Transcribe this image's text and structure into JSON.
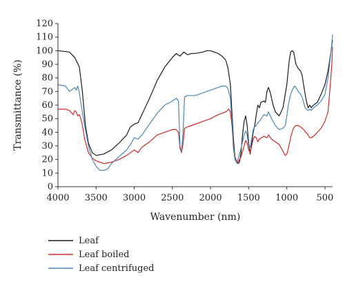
{
  "chart_data": {
    "type": "line",
    "xlabel": "Wavenumber (nm)",
    "ylabel": "Transmittance (%)",
    "xlim": [
      4000,
      400
    ],
    "ylim": [
      0,
      120
    ],
    "x_reversed": true,
    "x_ticks": [
      4000,
      3500,
      3000,
      2500,
      2000,
      1500,
      1000,
      500
    ],
    "y_ticks": [
      0,
      10,
      20,
      30,
      40,
      50,
      60,
      70,
      80,
      90,
      100,
      110,
      120
    ],
    "grid": false,
    "legend_position": "bottom-left",
    "series": [
      {
        "name": "Leaf",
        "color": "#1a1a1a",
        "points": [
          [
            4000,
            100
          ],
          [
            3850,
            99
          ],
          [
            3780,
            95
          ],
          [
            3720,
            88
          ],
          [
            3680,
            70
          ],
          [
            3640,
            45
          ],
          [
            3600,
            32
          ],
          [
            3550,
            25
          ],
          [
            3500,
            23
          ],
          [
            3400,
            24
          ],
          [
            3300,
            27
          ],
          [
            3200,
            32
          ],
          [
            3100,
            38
          ],
          [
            3050,
            44
          ],
          [
            3000,
            46
          ],
          [
            2950,
            47
          ],
          [
            2900,
            53
          ],
          [
            2800,
            65
          ],
          [
            2700,
            78
          ],
          [
            2600,
            88
          ],
          [
            2500,
            95
          ],
          [
            2450,
            98
          ],
          [
            2400,
            96
          ],
          [
            2350,
            99
          ],
          [
            2300,
            97
          ],
          [
            2250,
            98
          ],
          [
            2200,
            98
          ],
          [
            2100,
            99
          ],
          [
            2050,
            100
          ],
          [
            2000,
            100
          ],
          [
            1950,
            99
          ],
          [
            1900,
            98
          ],
          [
            1850,
            96
          ],
          [
            1800,
            93
          ],
          [
            1770,
            87
          ],
          [
            1740,
            75
          ],
          [
            1720,
            55
          ],
          [
            1700,
            35
          ],
          [
            1680,
            22
          ],
          [
            1660,
            18
          ],
          [
            1640,
            17
          ],
          [
            1620,
            18
          ],
          [
            1600,
            25
          ],
          [
            1580,
            38
          ],
          [
            1560,
            48
          ],
          [
            1540,
            52
          ],
          [
            1520,
            45
          ],
          [
            1500,
            32
          ],
          [
            1480,
            24
          ],
          [
            1460,
            32
          ],
          [
            1440,
            40
          ],
          [
            1420,
            45
          ],
          [
            1400,
            53
          ],
          [
            1380,
            60
          ],
          [
            1360,
            58
          ],
          [
            1340,
            62
          ],
          [
            1300,
            63
          ],
          [
            1280,
            62
          ],
          [
            1260,
            70
          ],
          [
            1240,
            73
          ],
          [
            1220,
            70
          ],
          [
            1200,
            65
          ],
          [
            1180,
            60
          ],
          [
            1150,
            55
          ],
          [
            1100,
            52
          ],
          [
            1050,
            58
          ],
          [
            1000,
            75
          ],
          [
            970,
            92
          ],
          [
            950,
            99
          ],
          [
            930,
            100
          ],
          [
            910,
            99
          ],
          [
            880,
            90
          ],
          [
            850,
            87
          ],
          [
            820,
            85
          ],
          [
            800,
            82
          ],
          [
            780,
            75
          ],
          [
            760,
            68
          ],
          [
            740,
            62
          ],
          [
            720,
            58
          ],
          [
            700,
            60
          ],
          [
            680,
            58
          ],
          [
            650,
            60
          ],
          [
            600,
            62
          ],
          [
            550,
            68
          ],
          [
            500,
            75
          ],
          [
            460,
            85
          ],
          [
            420,
            100
          ],
          [
            400,
            108
          ]
        ]
      },
      {
        "name": "Leaf boiled",
        "color": "#d62728",
        "points": [
          [
            4000,
            57
          ],
          [
            3900,
            57
          ],
          [
            3850,
            56
          ],
          [
            3800,
            53
          ],
          [
            3780,
            56
          ],
          [
            3760,
            55
          ],
          [
            3740,
            52
          ],
          [
            3720,
            53
          ],
          [
            3700,
            50
          ],
          [
            3680,
            45
          ],
          [
            3650,
            35
          ],
          [
            3600,
            25
          ],
          [
            3550,
            21
          ],
          [
            3500,
            19
          ],
          [
            3450,
            18
          ],
          [
            3400,
            17
          ],
          [
            3300,
            18
          ],
          [
            3200,
            20
          ],
          [
            3100,
            23
          ],
          [
            3050,
            25
          ],
          [
            3000,
            27
          ],
          [
            2950,
            25
          ],
          [
            2900,
            29
          ],
          [
            2800,
            33
          ],
          [
            2700,
            38
          ],
          [
            2600,
            40
          ],
          [
            2500,
            42
          ],
          [
            2450,
            42
          ],
          [
            2420,
            40
          ],
          [
            2400,
            28
          ],
          [
            2380,
            25
          ],
          [
            2360,
            32
          ],
          [
            2340,
            43
          ],
          [
            2300,
            44
          ],
          [
            2200,
            46
          ],
          [
            2100,
            48
          ],
          [
            2000,
            50
          ],
          [
            1900,
            53
          ],
          [
            1850,
            54
          ],
          [
            1800,
            55
          ],
          [
            1760,
            57
          ],
          [
            1740,
            55
          ],
          [
            1720,
            45
          ],
          [
            1700,
            30
          ],
          [
            1680,
            22
          ],
          [
            1660,
            19
          ],
          [
            1640,
            18
          ],
          [
            1620,
            20
          ],
          [
            1600,
            22
          ],
          [
            1580,
            26
          ],
          [
            1560,
            30
          ],
          [
            1540,
            34
          ],
          [
            1520,
            32
          ],
          [
            1500,
            27
          ],
          [
            1480,
            25
          ],
          [
            1460,
            30
          ],
          [
            1440,
            35
          ],
          [
            1420,
            37
          ],
          [
            1400,
            36
          ],
          [
            1380,
            33
          ],
          [
            1360,
            35
          ],
          [
            1300,
            37
          ],
          [
            1260,
            36
          ],
          [
            1240,
            38
          ],
          [
            1200,
            35
          ],
          [
            1150,
            33
          ],
          [
            1100,
            31
          ],
          [
            1050,
            26
          ],
          [
            1020,
            23
          ],
          [
            1000,
            24
          ],
          [
            980,
            28
          ],
          [
            950,
            36
          ],
          [
            920,
            42
          ],
          [
            900,
            44
          ],
          [
            880,
            45
          ],
          [
            850,
            45
          ],
          [
            820,
            44
          ],
          [
            800,
            43
          ],
          [
            780,
            42
          ],
          [
            750,
            40
          ],
          [
            720,
            38
          ],
          [
            700,
            36
          ],
          [
            680,
            36
          ],
          [
            650,
            37
          ],
          [
            600,
            40
          ],
          [
            550,
            43
          ],
          [
            500,
            48
          ],
          [
            460,
            55
          ],
          [
            430,
            75
          ],
          [
            410,
            90
          ],
          [
            400,
            103
          ]
        ]
      },
      {
        "name": "Leaf centrifuged",
        "color": "#4a86b8",
        "points": [
          [
            4000,
            75
          ],
          [
            3900,
            74
          ],
          [
            3850,
            70
          ],
          [
            3800,
            72
          ],
          [
            3780,
            73
          ],
          [
            3760,
            71
          ],
          [
            3740,
            74
          ],
          [
            3720,
            69
          ],
          [
            3700,
            62
          ],
          [
            3680,
            55
          ],
          [
            3650,
            45
          ],
          [
            3600,
            30
          ],
          [
            3550,
            20
          ],
          [
            3500,
            15
          ],
          [
            3450,
            12
          ],
          [
            3400,
            12
          ],
          [
            3350,
            13
          ],
          [
            3300,
            17
          ],
          [
            3200,
            22
          ],
          [
            3100,
            27
          ],
          [
            3050,
            31
          ],
          [
            3000,
            36
          ],
          [
            2950,
            35
          ],
          [
            2900,
            38
          ],
          [
            2800,
            46
          ],
          [
            2700,
            54
          ],
          [
            2600,
            60
          ],
          [
            2500,
            63
          ],
          [
            2450,
            65
          ],
          [
            2420,
            63
          ],
          [
            2400,
            30
          ],
          [
            2380,
            26
          ],
          [
            2360,
            40
          ],
          [
            2340,
            66
          ],
          [
            2300,
            67
          ],
          [
            2200,
            67
          ],
          [
            2100,
            69
          ],
          [
            2000,
            71
          ],
          [
            1900,
            73
          ],
          [
            1850,
            74
          ],
          [
            1800,
            74
          ],
          [
            1770,
            72
          ],
          [
            1740,
            65
          ],
          [
            1720,
            48
          ],
          [
            1700,
            28
          ],
          [
            1680,
            20
          ],
          [
            1660,
            18
          ],
          [
            1640,
            20
          ],
          [
            1620,
            24
          ],
          [
            1600,
            28
          ],
          [
            1580,
            33
          ],
          [
            1560,
            38
          ],
          [
            1540,
            41
          ],
          [
            1520,
            38
          ],
          [
            1500,
            30
          ],
          [
            1480,
            29
          ],
          [
            1460,
            35
          ],
          [
            1440,
            42
          ],
          [
            1420,
            44
          ],
          [
            1400,
            45
          ],
          [
            1380,
            47
          ],
          [
            1360,
            48
          ],
          [
            1300,
            53
          ],
          [
            1260,
            52
          ],
          [
            1240,
            55
          ],
          [
            1200,
            50
          ],
          [
            1150,
            45
          ],
          [
            1100,
            42
          ],
          [
            1050,
            43
          ],
          [
            1020,
            45
          ],
          [
            1000,
            52
          ],
          [
            980,
            60
          ],
          [
            950,
            68
          ],
          [
            920,
            72
          ],
          [
            900,
            74
          ],
          [
            880,
            73
          ],
          [
            850,
            70
          ],
          [
            820,
            68
          ],
          [
            800,
            66
          ],
          [
            780,
            62
          ],
          [
            760,
            58
          ],
          [
            740,
            57
          ],
          [
            720,
            56
          ],
          [
            700,
            57
          ],
          [
            680,
            56
          ],
          [
            650,
            58
          ],
          [
            600,
            60
          ],
          [
            550,
            63
          ],
          [
            500,
            68
          ],
          [
            460,
            80
          ],
          [
            430,
            95
          ],
          [
            410,
            105
          ],
          [
            400,
            112
          ]
        ]
      }
    ]
  }
}
